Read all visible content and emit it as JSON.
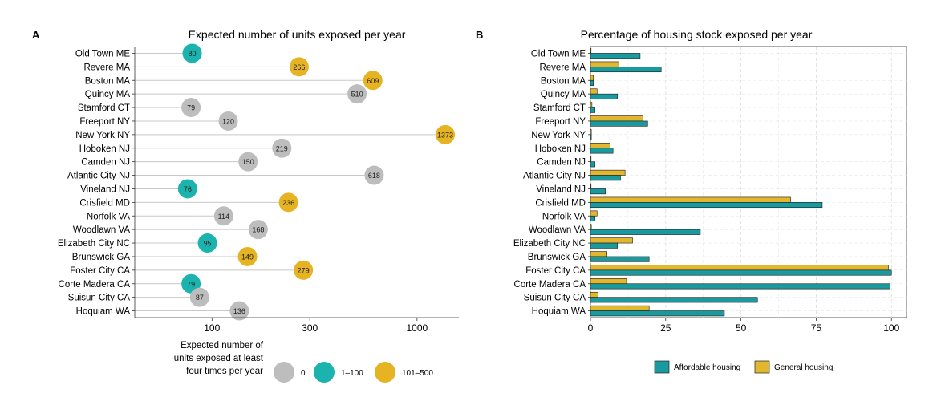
{
  "panel_a": {
    "label": "A",
    "title": "Expected number of units exposed per year",
    "x_ticks": [
      "100",
      "300",
      "1000"
    ],
    "legend": {
      "title": [
        "Expected number of",
        "units exposed at least",
        "four times per year"
      ],
      "items": [
        {
          "label": "0",
          "color": "#bdbdbd"
        },
        {
          "label": "1–100",
          "color": "#1bb3ad"
        },
        {
          "label": "101–500",
          "color": "#e6b323"
        }
      ]
    }
  },
  "panel_b": {
    "label": "B",
    "title": "Percentage of housing stock exposed per year",
    "x_ticks": [
      "0",
      "25",
      "50",
      "75",
      "100"
    ],
    "legend": {
      "items": [
        {
          "label": "Affordable housing",
          "color": "#1a9a9e"
        },
        {
          "label": "General housing",
          "color": "#e3b62f"
        }
      ]
    }
  },
  "chart_data": [
    {
      "type": "scatter",
      "title": "Expected number of units exposed per year",
      "x_scale": "log",
      "xlim": [
        42,
        1600
      ],
      "x_ticks": [
        100,
        300,
        1000
      ],
      "categories": [
        "Old Town ME",
        "Revere MA",
        "Boston MA",
        "Quincy MA",
        "Stamford CT",
        "Freeport NY",
        "New York NY",
        "Hoboken NJ",
        "Camden NJ",
        "Atlantic City NJ",
        "Vineland NJ",
        "Crisfield MD",
        "Norfolk VA",
        "Woodlawn VA",
        "Elizabeth City NC",
        "Brunswick GA",
        "Foster City CA",
        "Corte Madera CA",
        "Suisun City CA",
        "Hoquiam WA"
      ],
      "values": [
        80,
        266,
        609,
        510,
        79,
        120,
        1373,
        219,
        150,
        618,
        76,
        236,
        114,
        168,
        95,
        149,
        279,
        79,
        87,
        136
      ],
      "groups": [
        "1–100",
        "101–500",
        "101–500",
        "0",
        "0",
        "0",
        "101–500",
        "0",
        "0",
        "0",
        "1–100",
        "101–500",
        "0",
        "0",
        "1–100",
        "101–500",
        "101–500",
        "1–100",
        "0",
        "0"
      ],
      "grid": false
    },
    {
      "type": "bar",
      "title": "Percentage of housing stock exposed per year",
      "orientation": "horizontal",
      "xlim": [
        0,
        105
      ],
      "x_ticks": [
        0,
        25,
        50,
        75,
        100
      ],
      "categories": [
        "Old Town ME",
        "Revere MA",
        "Boston MA",
        "Quincy MA",
        "Stamford CT",
        "Freeport NY",
        "New York NY",
        "Hoboken NJ",
        "Camden NJ",
        "Atlantic City NJ",
        "Vineland NJ",
        "Crisfield MD",
        "Norfolk VA",
        "Woodlawn VA",
        "Elizabeth City NC",
        "Brunswick GA",
        "Foster City CA",
        "Corte Madera CA",
        "Suisun City CA",
        "Hoquiam WA"
      ],
      "series": [
        {
          "name": "General housing",
          "color": "#e3b62f",
          "values": [
            0.2,
            9.5,
            1.0,
            2.2,
            0.5,
            17.5,
            0.3,
            6.5,
            0.2,
            11.5,
            0.2,
            66.5,
            2.2,
            0.3,
            14.0,
            5.5,
            99.0,
            12.0,
            2.5,
            19.5
          ]
        },
        {
          "name": "Affordable housing",
          "color": "#1a9a9e",
          "values": [
            16.5,
            23.5,
            1.0,
            9.0,
            1.5,
            19.0,
            0.3,
            7.5,
            1.5,
            10.0,
            5.0,
            77.0,
            1.5,
            36.5,
            9.0,
            19.5,
            100.0,
            99.5,
            55.5,
            44.5
          ]
        }
      ],
      "grid": true,
      "legend": "bottom"
    }
  ]
}
